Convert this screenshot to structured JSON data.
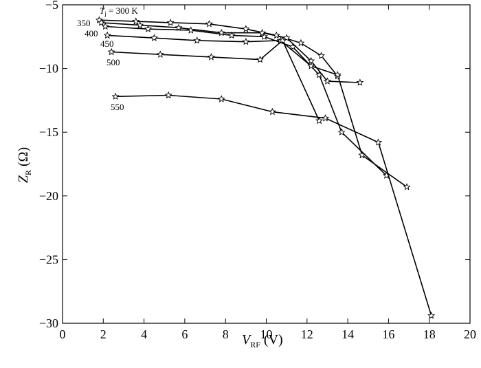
{
  "chart_data": {
    "type": "line",
    "xlabel": {
      "main": "V",
      "sub": "RF",
      "unit": " (V)"
    },
    "ylabel": {
      "main": "Z",
      "sub": "R",
      "unit": " (Ω)"
    },
    "xlim": [
      0,
      20
    ],
    "ylim": [
      -30,
      -5
    ],
    "x_ticks": [
      0,
      2,
      4,
      6,
      8,
      10,
      12,
      14,
      16,
      18,
      20
    ],
    "y_ticks": [
      -5,
      -10,
      -15,
      -20,
      -25,
      -30
    ],
    "x_tick_labels": [
      "0",
      "2",
      "4",
      "6",
      "8",
      "10",
      "12",
      "14",
      "16",
      "18",
      "20"
    ],
    "y_tick_labels": [
      "−5",
      "−10",
      "−15",
      "−20",
      "−25",
      "−30"
    ],
    "grid": false,
    "legend": "none",
    "series_label_prefix": {
      "main": "T",
      "sub": "j",
      "rest": " = 300 K"
    },
    "series": [
      {
        "name": "300",
        "label": "T_j = 300 K",
        "x": [
          1.8,
          3.6,
          5.3,
          7.2,
          9.0,
          10.5,
          11.7,
          12.7,
          13.5
        ],
        "y": [
          -6.2,
          -6.3,
          -6.4,
          -6.5,
          -6.9,
          -7.4,
          -8.0,
          -9.0,
          -10.6
        ]
      },
      {
        "name": "350",
        "label": "350",
        "x": [
          1.9,
          3.8,
          5.7,
          7.8,
          9.8,
          11.0,
          12.2,
          13.0,
          14.6
        ],
        "y": [
          -6.4,
          -6.6,
          -6.8,
          -7.2,
          -7.2,
          -7.6,
          -9.4,
          -11.0,
          -11.1
        ]
      },
      {
        "name": "400",
        "label": "400",
        "x": [
          2.1,
          4.2,
          6.3,
          8.3,
          9.9,
          11.3,
          12.6,
          13.7,
          15.9
        ],
        "y": [
          -6.7,
          -6.9,
          -7.0,
          -7.4,
          -7.5,
          -8.3,
          -10.5,
          -15.0,
          -18.4
        ]
      },
      {
        "name": "450",
        "label": "450",
        "x": [
          2.2,
          4.5,
          6.6,
          9.0,
          10.7,
          12.2,
          13.5,
          14.7,
          16.9
        ],
        "y": [
          -7.4,
          -7.6,
          -7.8,
          -7.9,
          -7.8,
          -9.8,
          -10.5,
          -16.8,
          -19.3
        ]
      },
      {
        "name": "500",
        "label": "500",
        "x": [
          2.4,
          4.8,
          7.3,
          9.7,
          10.8,
          12.6
        ],
        "y": [
          -8.7,
          -8.9,
          -9.1,
          -9.3,
          -7.8,
          -14.1
        ]
      },
      {
        "name": "550",
        "label": "550",
        "x": [
          2.6,
          5.2,
          7.8,
          10.3,
          12.9,
          15.5,
          18.1
        ],
        "y": [
          -12.2,
          -12.1,
          -12.4,
          -13.4,
          -13.9,
          -15.8,
          -29.4
        ]
      }
    ]
  }
}
